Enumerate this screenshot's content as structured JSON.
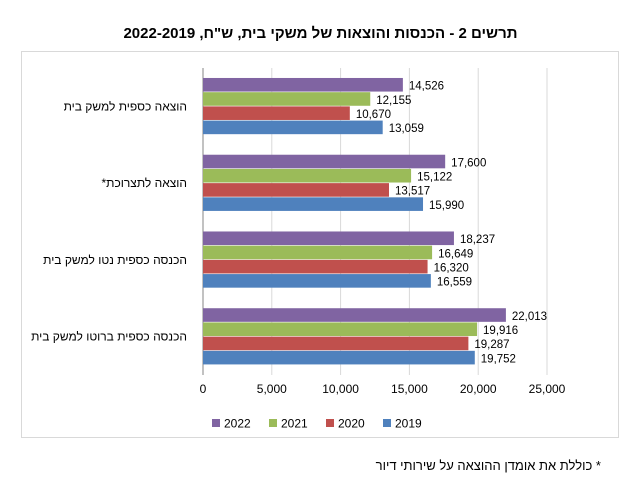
{
  "title": "תרשים 2 - הכנסות והוצאות של משקי בית, ש\"ח, 2022-2019",
  "footnote": "* כוללת את אומדן ההוצאה על שירותי דיור",
  "chart_data": {
    "type": "bar",
    "orientation": "horizontal",
    "categories": [
      "הוצאה כספית  למשק בית",
      "הוצאה לתצרוכת*",
      "הכנסה כספית נטו למשק בית",
      "הכנסה כספית ברוטו למשק בית"
    ],
    "series": [
      {
        "name": "2022",
        "color": "#8064a2",
        "values": [
          14526,
          17600,
          18237,
          22013
        ]
      },
      {
        "name": "2021",
        "color": "#9bbb59",
        "values": [
          12155,
          15122,
          16649,
          19916
        ]
      },
      {
        "name": "2020",
        "color": "#c0504d",
        "values": [
          10670,
          13517,
          16320,
          19287
        ]
      },
      {
        "name": "2019",
        "color": "#4f81bd",
        "values": [
          13059,
          15990,
          16559,
          19752
        ]
      }
    ],
    "xlim": [
      0,
      25000
    ],
    "xticks": [
      "0",
      "5,000",
      "10,000",
      "15,000",
      "20,000",
      "25,000"
    ],
    "grid": true,
    "legend_position": "bottom",
    "data_labels": true
  }
}
